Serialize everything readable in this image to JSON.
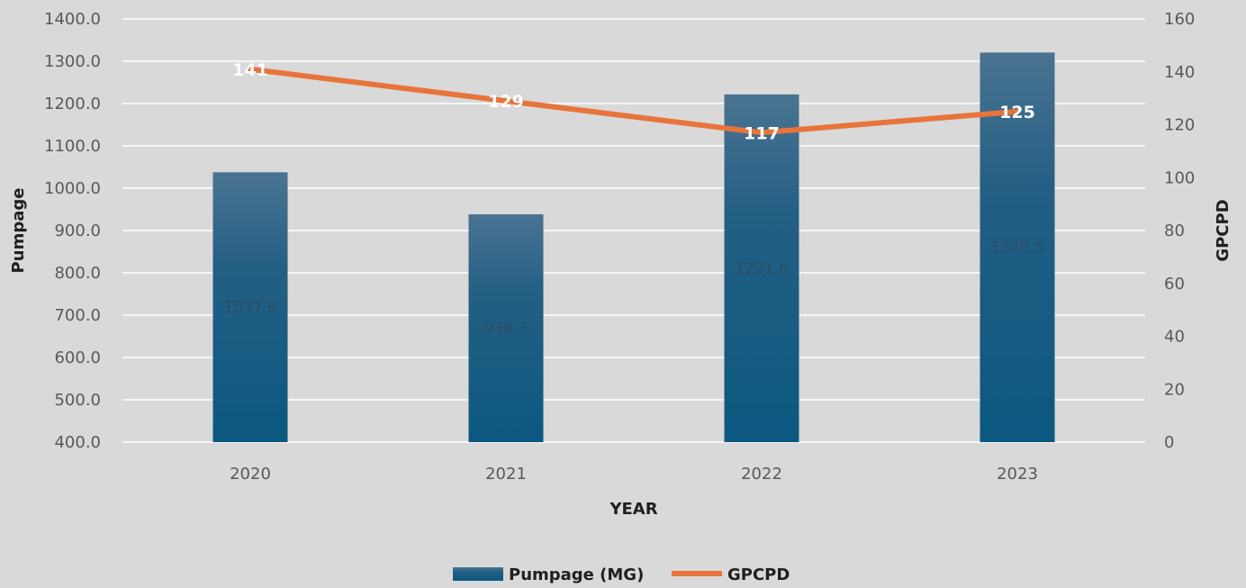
{
  "chart_data": {
    "type": "bar",
    "categories": [
      "2020",
      "2021",
      "2022",
      "2023"
    ],
    "series": [
      {
        "name": "Pumpage (MG)",
        "type": "bar",
        "axis": "left",
        "values": [
          1037.6,
          938.3,
          1221.6,
          1320.5
        ],
        "labels": [
          "1037.6",
          "938.3",
          "1221.6",
          "1320.5"
        ],
        "color": "#1f5f86"
      },
      {
        "name": "GPCPD",
        "type": "line",
        "axis": "right",
        "values": [
          141,
          129,
          117,
          125
        ],
        "labels": [
          "141",
          "129",
          "117",
          "125"
        ],
        "color": "#e8743b"
      }
    ],
    "xlabel": "YEAR",
    "ylabel_left": "Pumpage",
    "ylabel_right": "GPCPD",
    "ylim_left": [
      400,
      1400
    ],
    "yticks_left": [
      "400.0",
      "500.0",
      "600.0",
      "700.0",
      "800.0",
      "900.0",
      "1000.0",
      "1100.0",
      "1200.0",
      "1300.0",
      "1400.0"
    ],
    "ylim_right": [
      0,
      160
    ],
    "yticks_right": [
      "0",
      "20",
      "40",
      "60",
      "80",
      "100",
      "120",
      "140",
      "160"
    ],
    "grid": true,
    "legend": "bottom-center"
  }
}
